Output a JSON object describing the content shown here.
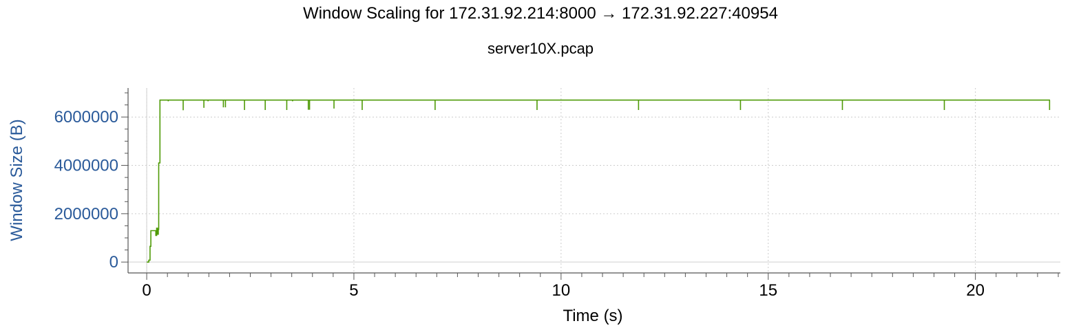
{
  "chart_data": {
    "type": "line",
    "title": "Window Scaling for 172.31.92.214:8000 → 172.31.92.227:40954",
    "subtitle": "server10X.pcap",
    "xlabel": "Time (s)",
    "ylabel": "Window Size (B)",
    "xlim": [
      -0.45,
      22.05
    ],
    "ylim": [
      -450000,
      7200000
    ],
    "x_ticks": [
      0,
      5,
      10,
      15,
      20
    ],
    "x_tick_labels": [
      "0",
      "5",
      "10",
      "15",
      "20"
    ],
    "y_ticks": [
      0,
      2000000,
      4000000,
      6000000
    ],
    "y_tick_labels": [
      "0",
      "2000000",
      "4000000",
      "6000000"
    ],
    "grid": true,
    "legend": "none",
    "colors": {
      "line": "#4e9a06",
      "ylabel": "#2a5a9a",
      "grid": "#cccccc",
      "axis": "#555555"
    },
    "series": [
      {
        "values": [
          [
            0.0,
            0
          ],
          [
            0.05,
            0
          ],
          [
            0.05,
            80000
          ],
          [
            0.08,
            80000
          ],
          [
            0.08,
            650000
          ],
          [
            0.1,
            650000
          ],
          [
            0.1,
            1300000
          ],
          [
            0.22,
            1300000
          ],
          [
            0.22,
            1100000
          ],
          [
            0.24,
            1100000
          ],
          [
            0.24,
            1400000
          ],
          [
            0.26,
            1400000
          ],
          [
            0.26,
            1150000
          ],
          [
            0.28,
            1150000
          ],
          [
            0.28,
            1350000
          ],
          [
            0.29,
            1350000
          ],
          [
            0.29,
            4100000
          ],
          [
            0.32,
            4100000
          ],
          [
            0.32,
            6700000
          ],
          [
            21.8,
            6700000
          ]
        ]
      }
    ],
    "dips": [
      [
        0.52,
        6650000
      ],
      [
        0.88,
        6280000
      ],
      [
        1.38,
        6380000
      ],
      [
        1.48,
        6650000
      ],
      [
        1.85,
        6400000
      ],
      [
        1.9,
        6400000
      ],
      [
        2.36,
        6290000
      ],
      [
        2.86,
        6290000
      ],
      [
        3.38,
        6290000
      ],
      [
        3.52,
        6650000
      ],
      [
        3.9,
        6300000
      ],
      [
        3.93,
        6300000
      ],
      [
        4.52,
        6350000
      ],
      [
        5.2,
        6290000
      ],
      [
        6.96,
        6290000
      ],
      [
        9.42,
        6290000
      ],
      [
        11.87,
        6290000
      ],
      [
        14.33,
        6290000
      ],
      [
        16.79,
        6290000
      ],
      [
        19.25,
        6290000
      ],
      [
        21.79,
        6290000
      ]
    ]
  }
}
